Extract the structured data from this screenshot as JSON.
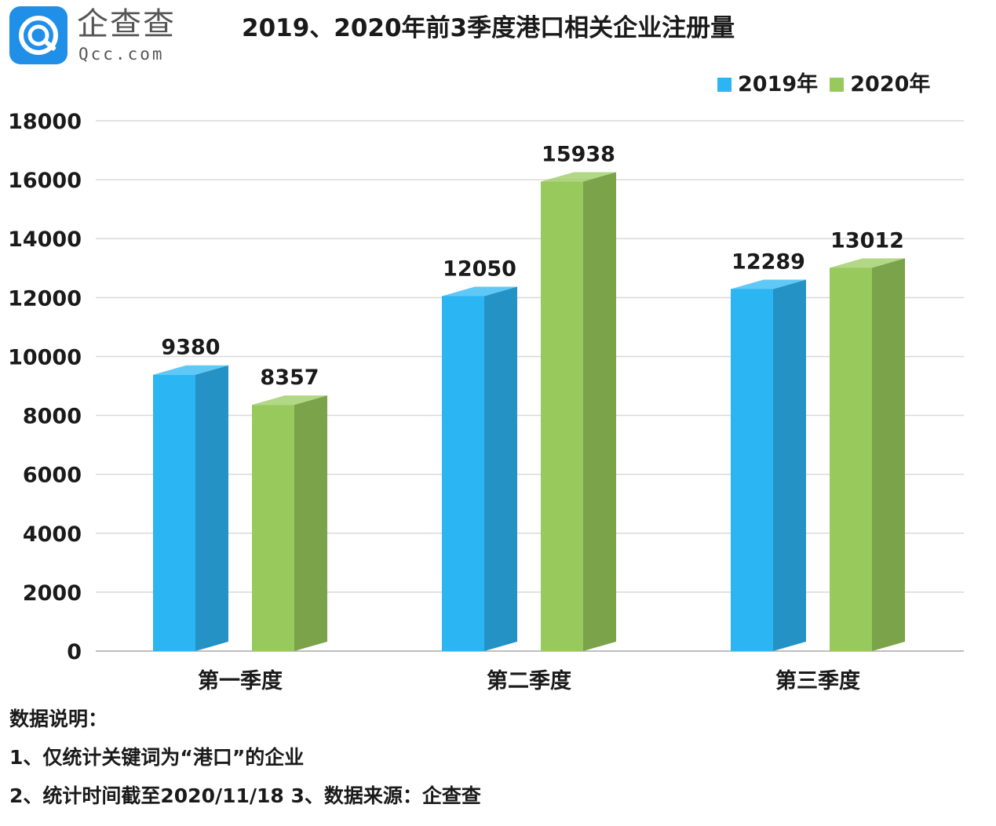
{
  "logo": {
    "name_cn": "企查查",
    "domain": "Qcc.com"
  },
  "chart_data": {
    "type": "bar",
    "title": "2019、2020年前3季度港口相关企业注册量",
    "categories": [
      "第一季度",
      "第二季度",
      "第三季度"
    ],
    "series": [
      {
        "name": "2019年",
        "values": [
          9380,
          12050,
          12289
        ],
        "color": "#2bb6f3",
        "side_color": "#2592c6"
      },
      {
        "name": "2020年",
        "values": [
          8357,
          15938,
          13012
        ],
        "color": "#98c95c",
        "side_color": "#7aa34a"
      }
    ],
    "ylim": [
      0,
      18000
    ],
    "yticks": [
      0,
      2000,
      4000,
      6000,
      8000,
      10000,
      12000,
      14000,
      16000,
      18000
    ],
    "grid": true,
    "legend_position": "top-right",
    "style": "3d-column"
  },
  "notes": {
    "heading": "数据说明：",
    "line1": "1、仅统计关键词为“港口”的企业",
    "line2": "2、统计时间截至2020/11/18   3、数据来源：企查查"
  },
  "colors": {
    "logo_blue": "#1f8fe8",
    "gridline": "#d9d9d9",
    "axis": "#bfbfbf"
  }
}
